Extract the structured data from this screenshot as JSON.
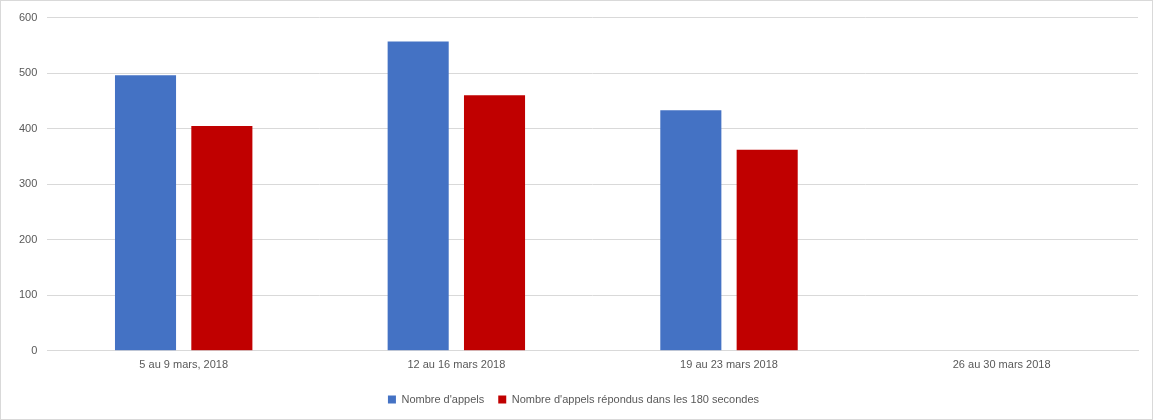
{
  "chart_data": {
    "type": "bar",
    "categories": [
      "5 au 9 mars, 2018",
      "12 au 16 mars 2018",
      "19 au 23 mars 2018",
      "26 au 30 mars 2018"
    ],
    "series": [
      {
        "name": "Nombre d'appels",
        "color": "#4472c4",
        "values": [
          496,
          557,
          433,
          null
        ]
      },
      {
        "name": "Nombre d'appels répondus dans les 180 secondes",
        "color": "#c00000",
        "values": [
          405,
          460,
          362,
          null
        ]
      }
    ],
    "ylim": [
      0,
      600
    ],
    "yticks": [
      0,
      100,
      200,
      300,
      400,
      500,
      600
    ],
    "grid": true,
    "legend": "bottom"
  }
}
